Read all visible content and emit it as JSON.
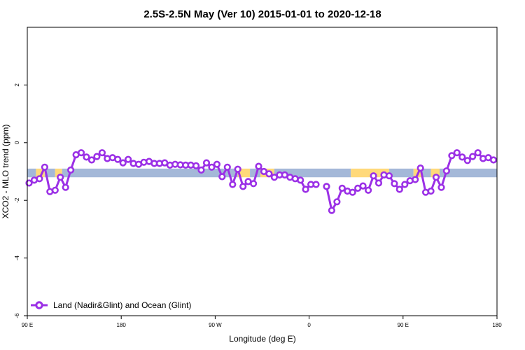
{
  "chart_data": {
    "type": "line",
    "title": "2.5S-2.5N May (Ver 10)   2015-01-01 to 2020-12-18",
    "xlabel": "Longitude (deg E)",
    "ylabel": "XCO2 - MLO trend (ppm)",
    "xlim": [
      -90,
      180
    ],
    "ylim": [
      -6,
      4
    ],
    "x_ticks": [
      {
        "value": -90,
        "label": "90 E"
      },
      {
        "value": -36,
        "label": "180"
      },
      {
        "value": 18,
        "label": "90 W"
      },
      {
        "value": 72,
        "label": "0"
      },
      {
        "value": 126,
        "label": "90 E"
      },
      {
        "value": 180,
        "label": "180"
      }
    ],
    "y_ticks": [
      {
        "value": -6,
        "label": "-6"
      },
      {
        "value": -4,
        "label": "-4"
      },
      {
        "value": -2,
        "label": "-2"
      },
      {
        "value": 0,
        "label": "0"
      },
      {
        "value": 2,
        "label": "2"
      }
    ],
    "grid": false,
    "legend_position": "bottom-left",
    "surface_band": {
      "y_range": [
        -1.2,
        -0.9
      ],
      "segments": [
        {
          "type": "ocean",
          "x_range": [
            -90,
            -85
          ],
          "color": "#a4b8d8"
        },
        {
          "type": "land",
          "x_range": [
            -85,
            -80
          ],
          "color": "#ffd97a"
        },
        {
          "type": "ocean",
          "x_range": [
            -80,
            -74
          ],
          "color": "#a4b8d8"
        },
        {
          "type": "land",
          "x_range": [
            -74,
            -70
          ],
          "color": "#ffd97a"
        },
        {
          "type": "ocean",
          "x_range": [
            -70,
            31
          ],
          "color": "#a4b8d8"
        },
        {
          "type": "land",
          "x_range": [
            31,
            38
          ],
          "color": "#ffd97a"
        },
        {
          "type": "ocean",
          "x_range": [
            38,
            44
          ],
          "color": "#a4b8d8"
        },
        {
          "type": "land",
          "x_range": [
            44,
            52
          ],
          "color": "#ffd97a"
        },
        {
          "type": "ocean",
          "x_range": [
            52,
            96
          ],
          "color": "#a4b8d8"
        },
        {
          "type": "land",
          "x_range": [
            96,
            118
          ],
          "color": "#ffd97a"
        },
        {
          "type": "ocean",
          "x_range": [
            118,
            132
          ],
          "color": "#a4b8d8"
        },
        {
          "type": "land",
          "x_range": [
            132,
            137
          ],
          "color": "#ffd97a"
        },
        {
          "type": "ocean",
          "x_range": [
            137,
            142
          ],
          "color": "#a4b8d8"
        },
        {
          "type": "land",
          "x_range": [
            142,
            147
          ],
          "color": "#ffd97a"
        },
        {
          "type": "ocean",
          "x_range": [
            147,
            180
          ],
          "color": "#a4b8d8"
        }
      ]
    },
    "series": [
      {
        "name": "Land (Nadir&Glint) and Ocean (Glint)",
        "color": "#9b30e6",
        "segments": [
          [
            {
              "x": -89,
              "y": -1.4
            },
            {
              "x": -86,
              "y": -1.3
            },
            {
              "x": -83,
              "y": -1.25
            },
            {
              "x": -80,
              "y": -0.85
            },
            {
              "x": -77,
              "y": -1.7
            },
            {
              "x": -74,
              "y": -1.65
            },
            {
              "x": -71,
              "y": -1.2
            },
            {
              "x": -68,
              "y": -1.55
            },
            {
              "x": -65,
              "y": -0.95
            },
            {
              "x": -62,
              "y": -0.42
            },
            {
              "x": -59,
              "y": -0.35
            },
            {
              "x": -56,
              "y": -0.5
            },
            {
              "x": -53,
              "y": -0.6
            },
            {
              "x": -50,
              "y": -0.48
            },
            {
              "x": -47,
              "y": -0.35
            },
            {
              "x": -44,
              "y": -0.55
            },
            {
              "x": -41,
              "y": -0.52
            },
            {
              "x": -38,
              "y": -0.58
            },
            {
              "x": -35,
              "y": -0.7
            },
            {
              "x": -32,
              "y": -0.58
            },
            {
              "x": -29,
              "y": -0.72
            },
            {
              "x": -26,
              "y": -0.75
            },
            {
              "x": -23,
              "y": -0.68
            },
            {
              "x": -20,
              "y": -0.65
            },
            {
              "x": -17,
              "y": -0.72
            },
            {
              "x": -14,
              "y": -0.72
            },
            {
              "x": -11,
              "y": -0.7
            },
            {
              "x": -8,
              "y": -0.78
            },
            {
              "x": -5,
              "y": -0.75
            },
            {
              "x": -2,
              "y": -0.77
            },
            {
              "x": 1,
              "y": -0.78
            },
            {
              "x": 4,
              "y": -0.78
            },
            {
              "x": 7,
              "y": -0.8
            },
            {
              "x": 10,
              "y": -0.95
            },
            {
              "x": 13,
              "y": -0.7
            },
            {
              "x": 16,
              "y": -0.85
            },
            {
              "x": 19,
              "y": -0.75
            },
            {
              "x": 22,
              "y": -1.18
            },
            {
              "x": 25,
              "y": -0.85
            },
            {
              "x": 28,
              "y": -1.45
            },
            {
              "x": 31,
              "y": -0.92
            },
            {
              "x": 34,
              "y": -1.52
            },
            {
              "x": 37,
              "y": -1.35
            },
            {
              "x": 40,
              "y": -1.42
            },
            {
              "x": 43,
              "y": -0.82
            },
            {
              "x": 46,
              "y": -1.0
            },
            {
              "x": 49,
              "y": -1.08
            },
            {
              "x": 52,
              "y": -1.2
            },
            {
              "x": 55,
              "y": -1.12
            },
            {
              "x": 58,
              "y": -1.12
            },
            {
              "x": 61,
              "y": -1.2
            },
            {
              "x": 64,
              "y": -1.25
            },
            {
              "x": 67,
              "y": -1.3
            },
            {
              "x": 70,
              "y": -1.62
            },
            {
              "x": 73,
              "y": -1.45
            },
            {
              "x": 76,
              "y": -1.45
            }
          ],
          [
            {
              "x": 82,
              "y": -1.52
            },
            {
              "x": 85,
              "y": -2.35
            },
            {
              "x": 88,
              "y": -2.05
            },
            {
              "x": 91,
              "y": -1.58
            },
            {
              "x": 94,
              "y": -1.68
            },
            {
              "x": 97,
              "y": -1.72
            },
            {
              "x": 100,
              "y": -1.58
            },
            {
              "x": 103,
              "y": -1.5
            },
            {
              "x": 106,
              "y": -1.65
            },
            {
              "x": 109,
              "y": -1.15
            },
            {
              "x": 112,
              "y": -1.4
            },
            {
              "x": 115,
              "y": -1.12
            },
            {
              "x": 118,
              "y": -1.15
            },
            {
              "x": 121,
              "y": -1.42
            },
            {
              "x": 124,
              "y": -1.62
            },
            {
              "x": 127,
              "y": -1.45
            },
            {
              "x": 130,
              "y": -1.32
            },
            {
              "x": 133,
              "y": -1.28
            },
            {
              "x": 136,
              "y": -0.88
            },
            {
              "x": 139,
              "y": -1.72
            },
            {
              "x": 142,
              "y": -1.68
            },
            {
              "x": 145,
              "y": -1.2
            },
            {
              "x": 148,
              "y": -1.55
            },
            {
              "x": 151,
              "y": -0.98
            },
            {
              "x": 154,
              "y": -0.45
            },
            {
              "x": 157,
              "y": -0.35
            },
            {
              "x": 160,
              "y": -0.5
            },
            {
              "x": 163,
              "y": -0.62
            },
            {
              "x": 166,
              "y": -0.48
            },
            {
              "x": 169,
              "y": -0.35
            },
            {
              "x": 172,
              "y": -0.55
            },
            {
              "x": 175,
              "y": -0.52
            },
            {
              "x": 178,
              "y": -0.6
            }
          ]
        ]
      }
    ]
  }
}
